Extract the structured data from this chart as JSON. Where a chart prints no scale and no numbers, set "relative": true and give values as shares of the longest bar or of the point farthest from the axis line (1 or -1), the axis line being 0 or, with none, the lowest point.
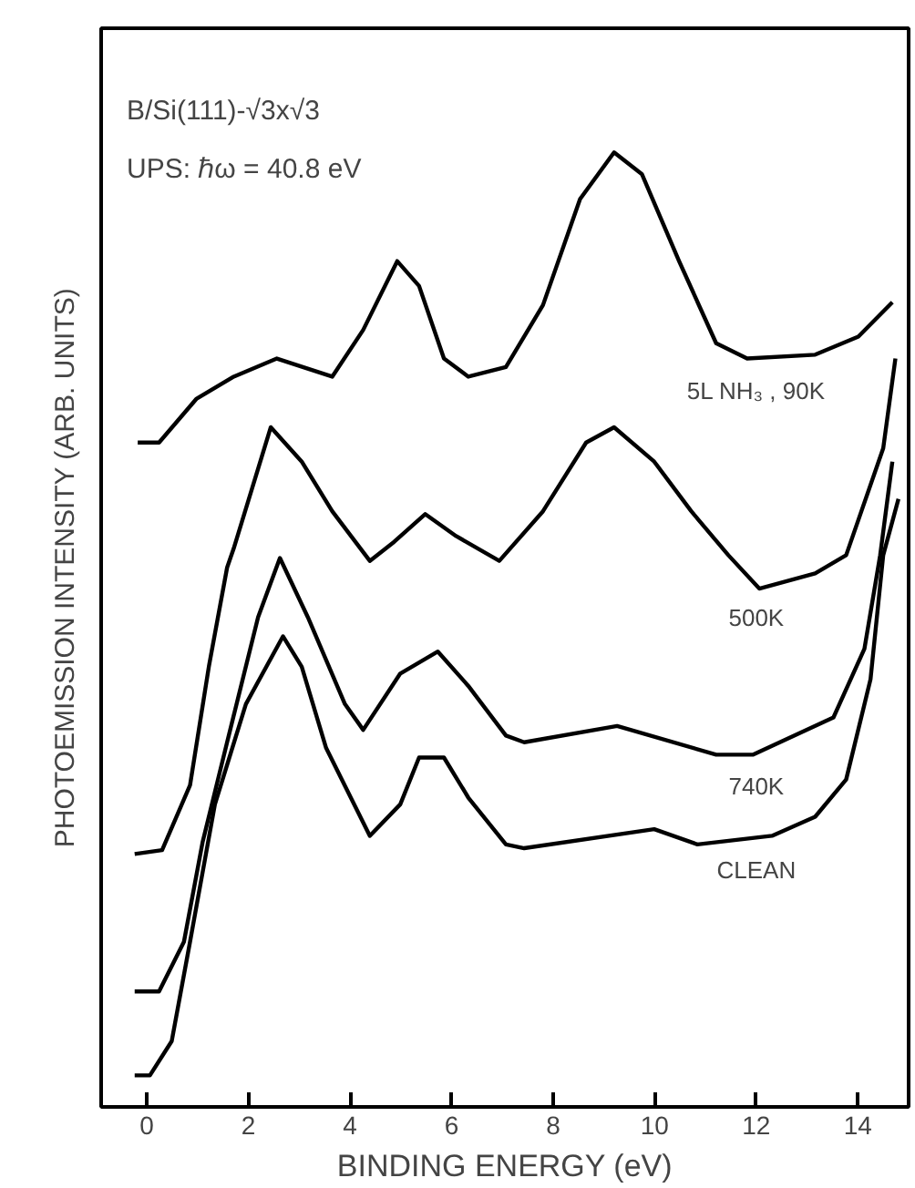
{
  "chart_data": {
    "type": "line",
    "relative": true,
    "xlabel": "BINDING ENERGY (eV)",
    "ylabel": "PHOTOEMISSION INTENSITY (ARB. UNITS)",
    "annotations": [
      "B/Si(111)-√3x√3",
      "UPS: ℏω = 40.8 eV"
    ],
    "xlim": [
      -0.9,
      15
    ],
    "xticks": [
      0,
      2,
      4,
      6,
      8,
      10,
      12,
      14
    ],
    "grid": false,
    "marker": "none",
    "line_style": "solid",
    "series": [
      {
        "name": "5L NH₃ , 90K",
        "color": "#000000",
        "x": [
          -0.18,
          0.24,
          0.98,
          1.71,
          2.56,
          3.65,
          4.26,
          4.93,
          5.36,
          5.85,
          6.33,
          7.07,
          7.8,
          8.53,
          9.2,
          9.75,
          10.48,
          11.21,
          11.82,
          13.16,
          14.01,
          14.68
        ],
        "values": [
          0.696,
          0.696,
          0.742,
          0.765,
          0.784,
          0.765,
          0.814,
          0.886,
          0.86,
          0.784,
          0.765,
          0.775,
          0.84,
          0.951,
          1.0,
          0.977,
          0.886,
          0.8,
          0.784,
          0.788,
          0.807,
          0.843
        ]
      },
      {
        "name": "500K",
        "color": "#000000",
        "x": [
          -0.24,
          0.3,
          0.85,
          1.22,
          1.58,
          1.71,
          2.44,
          3.05,
          3.65,
          4.39,
          4.87,
          5.48,
          6.09,
          6.94,
          7.8,
          8.65,
          9.2,
          9.99,
          10.72,
          11.45,
          12.06,
          13.16,
          13.77,
          14.5,
          14.74
        ],
        "values": [
          0.265,
          0.269,
          0.337,
          0.461,
          0.565,
          0.585,
          0.712,
          0.676,
          0.624,
          0.572,
          0.592,
          0.621,
          0.598,
          0.572,
          0.624,
          0.696,
          0.712,
          0.676,
          0.624,
          0.578,
          0.543,
          0.559,
          0.578,
          0.69,
          0.784
        ]
      },
      {
        "name": "740K",
        "color": "#000000",
        "x": [
          -0.24,
          0.24,
          0.73,
          1.1,
          1.58,
          2.19,
          2.62,
          3.17,
          3.9,
          4.26,
          4.99,
          5.73,
          6.33,
          7.07,
          7.43,
          9.26,
          11.21,
          11.94,
          13.52,
          14.13,
          14.44,
          14.68
        ],
        "values": [
          0.121,
          0.121,
          0.173,
          0.278,
          0.382,
          0.513,
          0.575,
          0.513,
          0.422,
          0.395,
          0.454,
          0.477,
          0.441,
          0.389,
          0.382,
          0.399,
          0.369,
          0.369,
          0.408,
          0.48,
          0.578,
          0.676
        ]
      },
      {
        "name": "CLEAN",
        "color": "#000000",
        "x": [
          -0.24,
          0.06,
          0.49,
          0.85,
          1.34,
          1.95,
          2.68,
          3.05,
          3.53,
          4.39,
          4.99,
          5.36,
          5.85,
          6.33,
          7.07,
          7.43,
          9.99,
          10.84,
          12.31,
          13.16,
          13.77,
          14.25,
          14.5,
          14.8
        ],
        "values": [
          0.033,
          0.033,
          0.069,
          0.173,
          0.317,
          0.422,
          0.493,
          0.461,
          0.376,
          0.284,
          0.317,
          0.366,
          0.366,
          0.324,
          0.275,
          0.271,
          0.291,
          0.275,
          0.284,
          0.304,
          0.343,
          0.448,
          0.578,
          0.637
        ]
      }
    ]
  }
}
